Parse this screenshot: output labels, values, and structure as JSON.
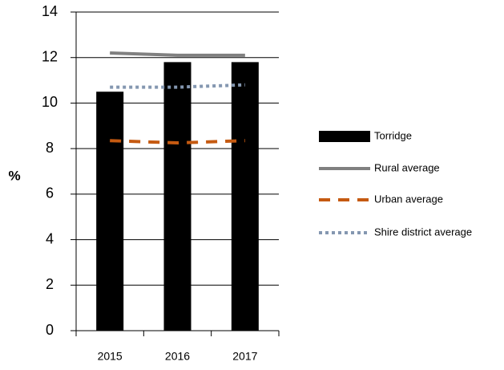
{
  "chart_data": {
    "type": "bar",
    "y_label": "%",
    "categories": [
      "2015",
      "2016",
      "2017"
    ],
    "series": [
      {
        "name": "Torridge",
        "color": "#000000",
        "style": "bar",
        "values": [
          10.5,
          11.8,
          11.8
        ]
      },
      {
        "name": "Rural average",
        "color": "#808080",
        "style": "solid",
        "values": [
          12.2,
          12.1,
          12.1
        ]
      },
      {
        "name": "Urban average",
        "color": "#c55a11",
        "style": "dashed",
        "values": [
          8.35,
          8.25,
          8.35
        ]
      },
      {
        "name": "Shire district average",
        "color": "#8497b0",
        "style": "dotted",
        "values": [
          10.7,
          10.7,
          10.8
        ]
      }
    ],
    "ylim": [
      0,
      14
    ],
    "yticks": [
      0,
      2,
      4,
      6,
      8,
      10,
      12,
      14
    ],
    "grid": true
  }
}
